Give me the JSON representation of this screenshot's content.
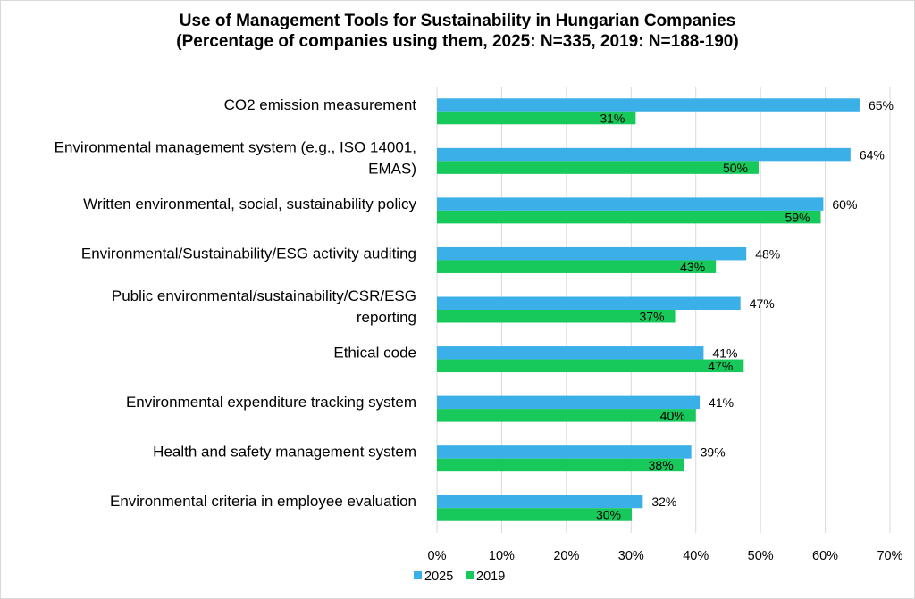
{
  "chart_data": {
    "type": "bar",
    "orientation": "horizontal",
    "title": [
      "Use of Management Tools for Sustainability in Hungarian Companies",
      "(Percentage of companies using them, 2025: N=335, 2019: N=188-190)"
    ],
    "categories": [
      [
        "CO2 emission measurement"
      ],
      [
        "Environmental management system (e.g., ISO 14001,",
        "EMAS)"
      ],
      [
        "Written environmental, social, sustainability policy"
      ],
      [
        "Environmental/Sustainability/ESG activity auditing"
      ],
      [
        "Public environmental/sustainability/CSR/ESG",
        "reporting"
      ],
      [
        "Ethical code"
      ],
      [
        "Environmental expenditure tracking system"
      ],
      [
        "Health and safety management system"
      ],
      [
        "Environmental criteria in employee evaluation"
      ]
    ],
    "series": [
      {
        "name": "2025",
        "color": "#3bb0e8",
        "values": [
          65.3,
          63.9,
          59.7,
          47.8,
          46.9,
          41.2,
          40.6,
          39.3,
          31.8
        ],
        "labels": [
          "65%",
          "64%",
          "60%",
          "48%",
          "47%",
          "41%",
          "41%",
          "39%",
          "32%"
        ]
      },
      {
        "name": "2019",
        "color": "#17c85a",
        "values": [
          30.7,
          49.7,
          59.3,
          43.1,
          36.8,
          47.4,
          40.0,
          38.2,
          30.1
        ],
        "labels": [
          "31%",
          "50%",
          "59%",
          "43%",
          "37%",
          "47%",
          "40%",
          "38%",
          "30%"
        ]
      }
    ],
    "xlim": [
      0,
      70
    ],
    "xticks": [
      0,
      10,
      20,
      30,
      40,
      50,
      60,
      70
    ],
    "xtick_labels": [
      "0%",
      "10%",
      "20%",
      "30%",
      "40%",
      "50%",
      "60%",
      "70%"
    ],
    "grid": "vertical",
    "legend_position": "bottom"
  }
}
